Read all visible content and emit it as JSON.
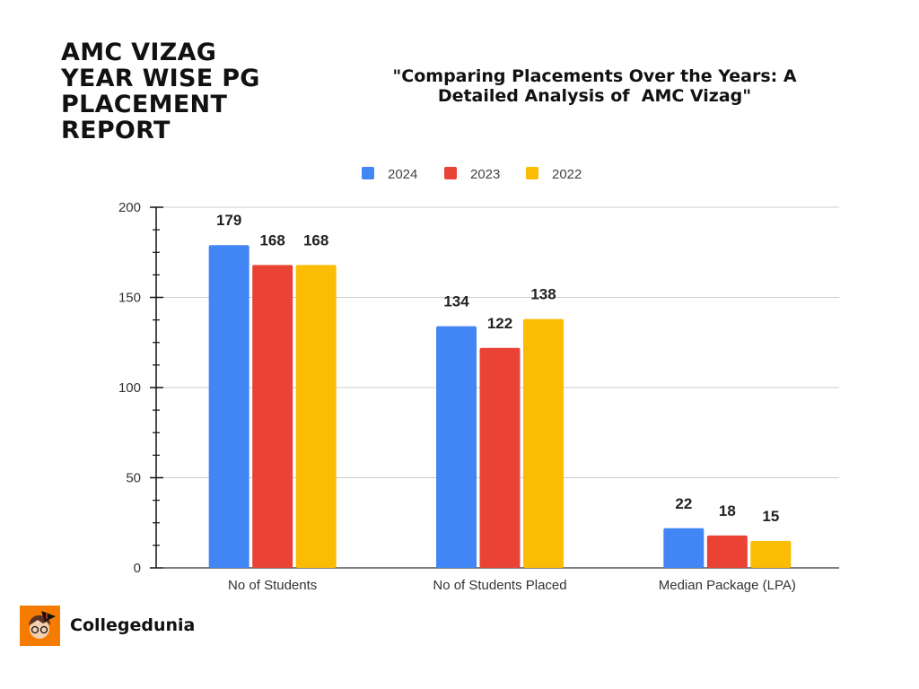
{
  "title_lines": [
    "AMC VIZAG",
    "YEAR WISE PG",
    "PLACEMENT",
    "REPORT"
  ],
  "subtitle_lines": [
    "\"Comparing Placements Over the Years: A",
    "Detailed Analysis of  AMC Vizag\""
  ],
  "brand": {
    "name": "Collegedunia",
    "logo_color": "#f57c00"
  },
  "chart_data": {
    "type": "bar",
    "categories": [
      "No of Students",
      "No of Students Placed",
      "Median Package (LPA)"
    ],
    "series": [
      {
        "name": "2024",
        "color": "#4285f4",
        "values": [
          179,
          134,
          22
        ]
      },
      {
        "name": "2023",
        "color": "#ea4335",
        "values": [
          168,
          122,
          18
        ]
      },
      {
        "name": "2022",
        "color": "#fbbc04",
        "values": [
          168,
          138,
          15
        ]
      }
    ],
    "ylim": [
      0,
      200
    ],
    "yticks": [
      0,
      50,
      100,
      150,
      200
    ],
    "grid": true,
    "legend": "top",
    "data_labels": true
  }
}
